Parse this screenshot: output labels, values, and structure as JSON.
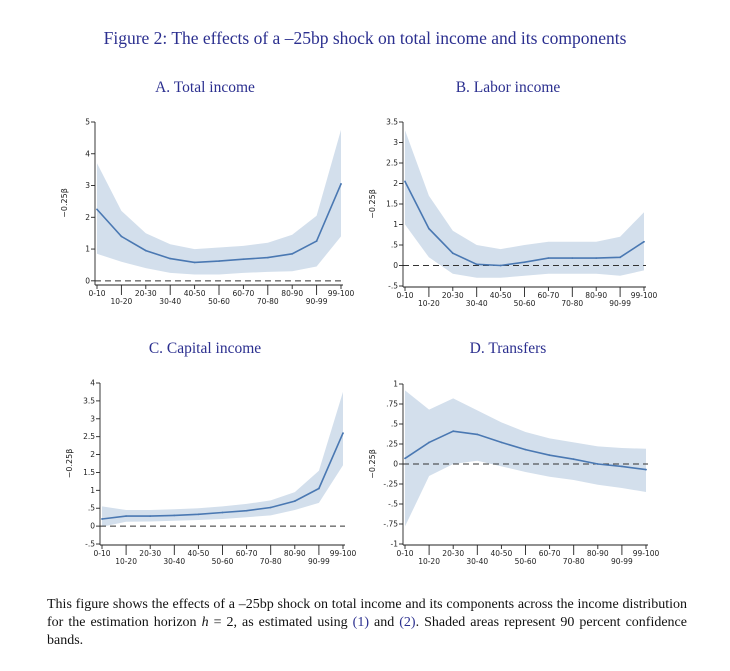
{
  "figure_title": "Figure 2: The effects of a –25bp shock on total income and its components",
  "caption": {
    "text_1": "This figure shows the effects of a –25bp shock on total income and its components across the income distribution for the estimation horizon ",
    "h_symbol": "h",
    "text_2": " = 2, as estimated using ",
    "ref_1": "(1)",
    "text_3": " and ",
    "ref_2": "(2)",
    "text_4": ". Shaded areas represent 90 percent confidence bands."
  },
  "colors": {
    "line": "#4a78b2",
    "band": "#d3dfec",
    "title": "#2b2f8f"
  },
  "chart_data": [
    {
      "type": "line",
      "title": "A. Total income",
      "ylabel": "−0.25β",
      "categories": [
        "0-10",
        "10-20",
        "20-30",
        "30-40",
        "40-50",
        "50-60",
        "60-70",
        "70-80",
        "80-90",
        "90-99",
        "99-100"
      ],
      "ylim": [
        -0.1,
        5.0
      ],
      "yticks": [
        0,
        1,
        2,
        3,
        4,
        5
      ],
      "ytick_labels": [
        "0",
        "1",
        "2",
        "3",
        "4",
        "5"
      ],
      "series": [
        {
          "name": "estimate",
          "values": [
            2.25,
            1.4,
            0.95,
            0.7,
            0.58,
            0.62,
            0.68,
            0.73,
            0.85,
            1.25,
            3.05
          ]
        },
        {
          "name": "upper_90",
          "values": [
            3.7,
            2.2,
            1.5,
            1.15,
            1.0,
            1.05,
            1.1,
            1.2,
            1.45,
            2.05,
            4.75
          ]
        },
        {
          "name": "lower_90",
          "values": [
            0.85,
            0.6,
            0.4,
            0.25,
            0.2,
            0.2,
            0.25,
            0.28,
            0.3,
            0.45,
            1.4
          ]
        }
      ],
      "zero_line": "dashed"
    },
    {
      "type": "line",
      "title": "B. Labor income",
      "ylabel": "−0.25β",
      "categories": [
        "0-10",
        "10-20",
        "20-30",
        "30-40",
        "40-50",
        "50-60",
        "60-70",
        "70-80",
        "80-90",
        "90-99",
        "99-100"
      ],
      "ylim": [
        -0.5,
        3.5
      ],
      "yticks": [
        -0.5,
        0,
        0.5,
        1,
        1.5,
        2,
        2.5,
        3,
        3.5
      ],
      "ytick_labels": [
        "-.5",
        "0",
        ".5",
        "1",
        "1.5",
        "2",
        "2.5",
        "3",
        "3.5"
      ],
      "series": [
        {
          "name": "estimate",
          "values": [
            2.05,
            0.9,
            0.3,
            0.03,
            0.0,
            0.08,
            0.18,
            0.18,
            0.18,
            0.2,
            0.58
          ]
        },
        {
          "name": "upper_90",
          "values": [
            3.3,
            1.7,
            0.85,
            0.5,
            0.4,
            0.5,
            0.58,
            0.58,
            0.58,
            0.7,
            1.3
          ]
        },
        {
          "name": "lower_90",
          "values": [
            1.0,
            0.2,
            -0.2,
            -0.3,
            -0.3,
            -0.25,
            -0.2,
            -0.2,
            -0.2,
            -0.25,
            -0.12
          ]
        }
      ],
      "zero_line": "dashed"
    },
    {
      "type": "line",
      "title": "C. Capital income",
      "ylabel": "−0.25β",
      "categories": [
        "0-10",
        "10-20",
        "20-30",
        "30-40",
        "40-50",
        "50-60",
        "60-70",
        "70-80",
        "80-90",
        "90-99",
        "99-100"
      ],
      "ylim": [
        -0.5,
        4.0
      ],
      "yticks": [
        -0.5,
        0,
        0.5,
        1,
        1.5,
        2,
        2.5,
        3,
        3.5,
        4
      ],
      "ytick_labels": [
        "-.5",
        "0",
        ".5",
        "1",
        "1.5",
        "2",
        "2.5",
        "3",
        "3.5",
        "4"
      ],
      "series": [
        {
          "name": "estimate",
          "values": [
            0.2,
            0.28,
            0.28,
            0.3,
            0.33,
            0.38,
            0.43,
            0.52,
            0.7,
            1.05,
            2.6
          ]
        },
        {
          "name": "upper_90",
          "values": [
            0.55,
            0.45,
            0.45,
            0.47,
            0.5,
            0.55,
            0.62,
            0.72,
            0.95,
            1.55,
            3.75
          ]
        },
        {
          "name": "lower_90",
          "values": [
            -0.02,
            0.12,
            0.13,
            0.15,
            0.17,
            0.2,
            0.25,
            0.3,
            0.45,
            0.65,
            1.7
          ]
        }
      ],
      "zero_line": "dashed"
    },
    {
      "type": "line",
      "title": "D. Transfers",
      "ylabel": "−0.25β",
      "categories": [
        "0-10",
        "10-20",
        "20-30",
        "30-40",
        "40-50",
        "50-60",
        "60-70",
        "70-80",
        "80-90",
        "90-99",
        "99-100"
      ],
      "ylim": [
        -1.0,
        1.0
      ],
      "yticks": [
        -1,
        -0.75,
        -0.5,
        -0.25,
        0,
        0.25,
        0.5,
        0.75,
        1
      ],
      "ytick_labels": [
        "-1",
        "-.75",
        "-.5",
        "-.25",
        "0",
        ".25",
        ".5",
        ".75",
        "1"
      ],
      "series": [
        {
          "name": "estimate",
          "values": [
            0.07,
            0.27,
            0.41,
            0.37,
            0.27,
            0.18,
            0.11,
            0.06,
            0.0,
            -0.03,
            -0.07
          ]
        },
        {
          "name": "upper_90",
          "values": [
            0.92,
            0.68,
            0.82,
            0.67,
            0.52,
            0.4,
            0.32,
            0.27,
            0.22,
            0.2,
            0.19
          ]
        },
        {
          "name": "lower_90",
          "values": [
            -0.78,
            -0.15,
            0.0,
            0.04,
            -0.03,
            -0.1,
            -0.16,
            -0.2,
            -0.26,
            -0.3,
            -0.35
          ]
        }
      ],
      "zero_line": "dashed"
    }
  ]
}
